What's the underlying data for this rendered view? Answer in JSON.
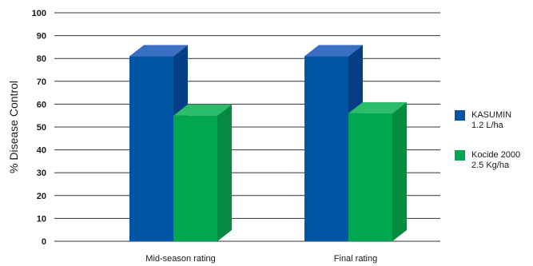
{
  "chart_data": {
    "type": "bar",
    "title": "",
    "xlabel": "",
    "ylabel": "% Disease Control",
    "ylim": [
      0,
      100
    ],
    "yticks": [
      0,
      10,
      20,
      30,
      40,
      50,
      60,
      70,
      80,
      90,
      100
    ],
    "categories": [
      "Mid-season rating",
      "Final rating"
    ],
    "series": [
      {
        "name_lines": [
          "KASUMIN",
          "1.2 L/ha"
        ],
        "values": [
          81,
          81
        ],
        "color": "#0055a5",
        "top_color": "#3a6fc4",
        "side_color": "#063f86"
      },
      {
        "name_lines": [
          "Kocide 2000",
          "2.5 Kg/ha"
        ],
        "values": [
          55,
          56
        ],
        "color": "#00a650",
        "top_color": "#2bbd6a",
        "side_color": "#058a42"
      }
    ],
    "grid": true,
    "legend_position": "right",
    "style": "3d-bar"
  }
}
